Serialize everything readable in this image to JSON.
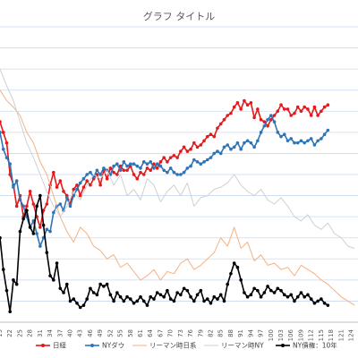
{
  "chart_data": {
    "type": "line",
    "title": "グラフ タイトル",
    "xlabel": "",
    "ylabel": "",
    "grid": true,
    "legend_position": "bottom",
    "x_tick_labels": [
      "19",
      "22",
      "25",
      "28",
      "31",
      "34",
      "37",
      "40",
      "43",
      "46",
      "49",
      "52",
      "55",
      "58",
      "61",
      "64",
      "67",
      "70",
      "73",
      "76",
      "79",
      "82",
      "85",
      "88",
      "91",
      "94",
      "97",
      "100",
      "103",
      "106",
      "109",
      "112",
      "115",
      "118",
      "121",
      "124"
    ],
    "x_range": [
      19,
      126
    ],
    "y_range": [
      0,
      14
    ],
    "series": [
      {
        "name": "日経",
        "color": "#e31a1c",
        "marker": "circle",
        "x": [
          19,
          20,
          21,
          22,
          23,
          24,
          25,
          26,
          27,
          28,
          29,
          30,
          31,
          32,
          33,
          34,
          35,
          36,
          37,
          38,
          39,
          40,
          41,
          42,
          43,
          44,
          45,
          46,
          47,
          48,
          49,
          50,
          51,
          52,
          53,
          54,
          55,
          56,
          57,
          58,
          59,
          60,
          61,
          62,
          63,
          64,
          65,
          66,
          67,
          68,
          69,
          70,
          71,
          72,
          73,
          74,
          75,
          76,
          77,
          78,
          79,
          80,
          81,
          82,
          83,
          84,
          85,
          86,
          87,
          88,
          89,
          90,
          91,
          92,
          93,
          94,
          95,
          96,
          97,
          98,
          99,
          100,
          101,
          102,
          103,
          104,
          105,
          106,
          107,
          108,
          109,
          110,
          111,
          112,
          113,
          114,
          115,
          116,
          117
        ],
        "values": [
          9.5,
          9.0,
          8.5,
          7.0,
          6.5,
          5.5,
          6.0,
          5.0,
          5.5,
          6.2,
          5.6,
          5.0,
          4.5,
          5.3,
          5.6,
          6.5,
          7.1,
          6.4,
          6.7,
          6.2,
          6.0,
          5.6,
          6.3,
          6.5,
          6.0,
          6.4,
          6.7,
          6.5,
          6.8,
          7.0,
          6.5,
          7.2,
          6.8,
          7.3,
          7.1,
          7.0,
          7.4,
          7.2,
          7.2,
          7.4,
          7.0,
          6.8,
          7.1,
          7.0,
          7.3,
          7.2,
          7.5,
          7.3,
          7.6,
          7.8,
          7.6,
          7.8,
          7.9,
          7.8,
          8.1,
          8.3,
          8.1,
          8.2,
          8.5,
          8.3,
          8.4,
          8.6,
          8.8,
          8.9,
          8.8,
          9.2,
          9.4,
          9.6,
          9.8,
          9.9,
          10.2,
          10.4,
          10.1,
          10.5,
          10.3,
          10.4,
          9.7,
          10.1,
          9.6,
          9.5,
          9.3,
          9.6,
          9.8,
          10.0,
          10.3,
          10.1,
          10.1,
          9.8,
          9.9,
          10.2,
          10.0,
          10.2,
          10.1,
          9.8,
          10.2,
          9.8,
          10.0,
          10.2,
          10.3
        ]
      },
      {
        "name": "NYダウ",
        "color": "#2e75b6",
        "marker": "circle",
        "x": [
          19,
          20,
          21,
          22,
          23,
          24,
          25,
          26,
          27,
          28,
          29,
          30,
          31,
          32,
          33,
          34,
          35,
          36,
          37,
          38,
          39,
          40,
          41,
          42,
          43,
          44,
          45,
          46,
          47,
          48,
          49,
          50,
          51,
          52,
          53,
          54,
          55,
          56,
          57,
          58,
          59,
          60,
          61,
          62,
          63,
          64,
          65,
          66,
          67,
          68,
          69,
          70,
          71,
          72,
          73,
          74,
          75,
          76,
          77,
          78,
          79,
          80,
          81,
          82,
          83,
          84,
          85,
          86,
          87,
          88,
          89,
          90,
          91,
          92,
          93,
          94,
          95,
          96,
          97,
          98,
          99,
          100,
          101,
          102,
          103,
          104,
          105,
          106,
          107,
          108,
          109,
          110,
          111,
          112,
          113,
          114,
          115,
          116,
          117
        ],
        "values": [
          9.0,
          8.2,
          7.8,
          7.5,
          6.4,
          6.7,
          5.8,
          5.5,
          5.0,
          4.5,
          4.8,
          4.2,
          3.6,
          4.0,
          4.4,
          4.3,
          5.2,
          5.5,
          5.6,
          5.3,
          5.9,
          5.5,
          6.0,
          6.3,
          6.6,
          6.8,
          7.0,
          7.1,
          6.9,
          7.2,
          7.0,
          7.3,
          7.2,
          7.0,
          7.4,
          7.5,
          7.2,
          7.6,
          7.4,
          7.5,
          7.5,
          7.4,
          7.3,
          7.6,
          7.5,
          7.6,
          7.3,
          7.5,
          7.4,
          7.2,
          7.1,
          7.3,
          7.1,
          7.0,
          7.0,
          7.1,
          7.3,
          7.4,
          7.7,
          7.6,
          7.5,
          7.6,
          7.7,
          7.8,
          8.0,
          8.1,
          8.0,
          8.3,
          8.4,
          8.2,
          8.3,
          8.5,
          8.2,
          8.5,
          8.6,
          8.5,
          8.3,
          8.6,
          9.0,
          9.3,
          9.6,
          9.8,
          9.5,
          9.0,
          8.8,
          8.9,
          8.6,
          8.7,
          8.5,
          8.5,
          8.6,
          8.5,
          8.6,
          8.7,
          8.4,
          8.6,
          8.7,
          8.9,
          9.1
        ]
      },
      {
        "name": "リーマン時日系",
        "color": "#f4b183",
        "marker": "none",
        "x": [
          19,
          21,
          23,
          25,
          27,
          29,
          31,
          33,
          35,
          37,
          39,
          41,
          43,
          45,
          47,
          49,
          51,
          53,
          55,
          57,
          59,
          61,
          63,
          65,
          67,
          69,
          71,
          73,
          75,
          77,
          79,
          81,
          83,
          85,
          87,
          89,
          91,
          93,
          95,
          97,
          99,
          101,
          103,
          105,
          107,
          109,
          111,
          113,
          115,
          117,
          119,
          121,
          123,
          125
        ],
        "values": [
          11.0,
          10.5,
          10.2,
          9.8,
          9.0,
          8.5,
          7.6,
          7.0,
          6.0,
          5.0,
          4.3,
          3.8,
          4.5,
          4.2,
          3.6,
          3.4,
          3.0,
          3.2,
          2.6,
          2.8,
          2.4,
          2.0,
          2.2,
          2.5,
          2.0,
          2.4,
          2.3,
          2.8,
          3.0,
          2.5,
          2.7,
          3.0,
          3.3,
          4.0,
          3.6,
          4.5,
          3.5,
          3.8,
          2.9,
          3.2,
          2.7,
          2.8,
          2.5,
          2.6,
          2.2,
          2.7,
          2.5,
          2.3,
          2.0,
          1.8,
          1.5,
          1.2,
          1.0,
          0.8
        ]
      },
      {
        "name": "リーマン時NY",
        "color": "#d0d0d0",
        "marker": "none",
        "x": [
          19,
          21,
          23,
          25,
          27,
          29,
          31,
          33,
          35,
          37,
          39,
          41,
          43,
          45,
          47,
          49,
          51,
          53,
          55,
          57,
          59,
          61,
          63,
          65,
          67,
          69,
          71,
          73,
          75,
          77,
          79,
          81,
          83,
          85,
          87,
          89,
          91,
          93,
          95,
          97,
          99,
          101,
          103,
          105,
          107,
          109,
          111,
          113,
          115,
          117,
          119,
          121,
          123,
          125
        ],
        "values": [
          12.0,
          11.2,
          10.5,
          9.5,
          8.5,
          7.8,
          7.0,
          6.2,
          5.5,
          5.0,
          5.5,
          6.2,
          5.8,
          6.5,
          7.0,
          6.8,
          7.2,
          6.5,
          7.0,
          6.0,
          6.3,
          5.8,
          6.8,
          6.5,
          5.7,
          6.2,
          6.5,
          6.0,
          6.6,
          5.5,
          5.9,
          6.0,
          6.3,
          6.4,
          6.6,
          7.0,
          6.5,
          6.2,
          6.0,
          6.3,
          5.8,
          5.6,
          5.9,
          5.5,
          5.0,
          4.8,
          5.1,
          4.6,
          4.4,
          4.7,
          4.2,
          4.0,
          3.6,
          3.5
        ]
      },
      {
        "name": "NY債権：10年",
        "color": "#000000",
        "marker": "circle",
        "x": [
          19,
          20,
          21,
          22,
          23,
          24,
          25,
          26,
          27,
          28,
          29,
          30,
          31,
          32,
          33,
          34,
          35,
          36,
          37,
          38,
          39,
          40,
          41,
          42,
          43,
          44,
          45,
          46,
          47,
          48,
          49,
          50,
          51,
          52,
          53,
          54,
          55,
          56,
          57,
          58,
          59,
          60,
          61,
          62,
          63,
          64,
          65,
          66,
          67,
          68,
          69,
          70,
          71,
          72,
          73,
          74,
          75,
          76,
          77,
          78,
          79,
          80,
          81,
          82,
          83,
          84,
          85,
          86,
          87,
          88,
          89,
          90,
          91,
          92,
          93,
          94,
          95,
          96,
          97,
          98,
          99,
          100,
          101,
          102,
          103,
          104,
          105,
          106,
          107,
          108,
          109,
          110,
          111,
          112,
          113,
          114,
          115,
          116,
          117
        ],
        "values": [
          4.0,
          2.5,
          1.5,
          0.5,
          2.0,
          1.8,
          4.3,
          4.9,
          5.3,
          4.5,
          4.2,
          5.5,
          6.0,
          4.6,
          3.3,
          2.2,
          2.0,
          2.8,
          1.6,
          1.4,
          1.8,
          1.0,
          1.1,
          0.9,
          0.7,
          0.8,
          1.1,
          1.6,
          1.4,
          1.3,
          1.8,
          1.7,
          1.8,
          1.3,
          1.0,
          1.4,
          1.2,
          1.0,
          1.2,
          1.1,
          0.9,
          1.0,
          1.2,
          1.0,
          0.8,
          1.2,
          1.1,
          1.4,
          1.3,
          1.2,
          1.5,
          1.1,
          1.0,
          1.4,
          1.3,
          1.6,
          1.5,
          1.2,
          1.0,
          1.3,
          1.5,
          1.0,
          1.1,
          0.9,
          1.2,
          1.1,
          1.3,
          1.0,
          1.8,
          2.3,
          2.8,
          2.6,
          2.0,
          1.4,
          1.2,
          1.3,
          1.6,
          1.5,
          1.2,
          1.4,
          1.7,
          1.5,
          1.4,
          1.6,
          1.5,
          1.3,
          1.2,
          1.3,
          1.0,
          1.2,
          1.4,
          1.2,
          1.3,
          1.1,
          0.9,
          1.0,
          1.1,
          0.9,
          0.8
        ]
      }
    ]
  }
}
